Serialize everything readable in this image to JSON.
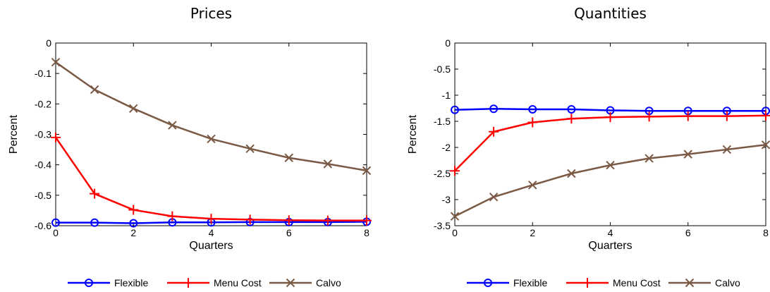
{
  "chart_data": [
    {
      "type": "line",
      "title": "Prices",
      "xlabel": "Quarters",
      "ylabel": "Percent",
      "xlim": [
        0,
        8
      ],
      "ylim": [
        -0.6,
        0
      ],
      "xticks": [
        0,
        2,
        4,
        6,
        8
      ],
      "yticks": [
        0,
        -0.1,
        -0.2,
        -0.3,
        -0.4,
        -0.5,
        -0.6
      ],
      "ytick_labels": [
        "0",
        "-0.1",
        "-0.2",
        "-0.3",
        "-0.4",
        "-0.5",
        "-0.6"
      ],
      "grid": false,
      "legend_placement": "bottom",
      "x": [
        0,
        1,
        2,
        3,
        4,
        5,
        6,
        7,
        8
      ],
      "series": [
        {
          "name": "Flexible",
          "color": "#0000ff",
          "marker": "circle",
          "values": [
            -0.59,
            -0.59,
            -0.592,
            -0.589,
            -0.589,
            -0.588,
            -0.588,
            -0.588,
            -0.587
          ]
        },
        {
          "name": "Menu Cost",
          "color": "#ff0000",
          "marker": "plus",
          "values": [
            -0.31,
            -0.495,
            -0.548,
            -0.569,
            -0.577,
            -0.58,
            -0.582,
            -0.583,
            -0.583
          ]
        },
        {
          "name": "Calvo",
          "color": "#7a5a44",
          "marker": "cross",
          "values": [
            -0.063,
            -0.153,
            -0.215,
            -0.27,
            -0.315,
            -0.347,
            -0.377,
            -0.397,
            -0.419
          ]
        }
      ]
    },
    {
      "type": "line",
      "title": "Quantities",
      "xlabel": "Quarters",
      "ylabel": "Percent",
      "xlim": [
        0,
        8
      ],
      "ylim": [
        -3.5,
        0
      ],
      "xticks": [
        0,
        2,
        4,
        6,
        8
      ],
      "yticks": [
        0,
        -0.5,
        -1,
        -1.5,
        -2,
        -2.5,
        -3,
        -3.5
      ],
      "ytick_labels": [
        "0",
        "-0.5",
        "-1",
        "-1.5",
        "-2",
        "-2.5",
        "-3",
        "-3.5"
      ],
      "grid": false,
      "legend_placement": "bottom",
      "x": [
        0,
        1,
        2,
        3,
        4,
        5,
        6,
        7,
        8
      ],
      "series": [
        {
          "name": "Flexible",
          "color": "#0000ff",
          "marker": "circle",
          "values": [
            -1.28,
            -1.26,
            -1.27,
            -1.27,
            -1.29,
            -1.3,
            -1.3,
            -1.3,
            -1.3
          ]
        },
        {
          "name": "Menu Cost",
          "color": "#ff0000",
          "marker": "plus",
          "values": [
            -2.45,
            -1.7,
            -1.52,
            -1.45,
            -1.42,
            -1.41,
            -1.4,
            -1.4,
            -1.39
          ]
        },
        {
          "name": "Calvo",
          "color": "#7a5a44",
          "marker": "cross",
          "values": [
            -3.32,
            -2.95,
            -2.72,
            -2.5,
            -2.34,
            -2.21,
            -2.13,
            -2.04,
            -1.95
          ]
        }
      ]
    }
  ]
}
